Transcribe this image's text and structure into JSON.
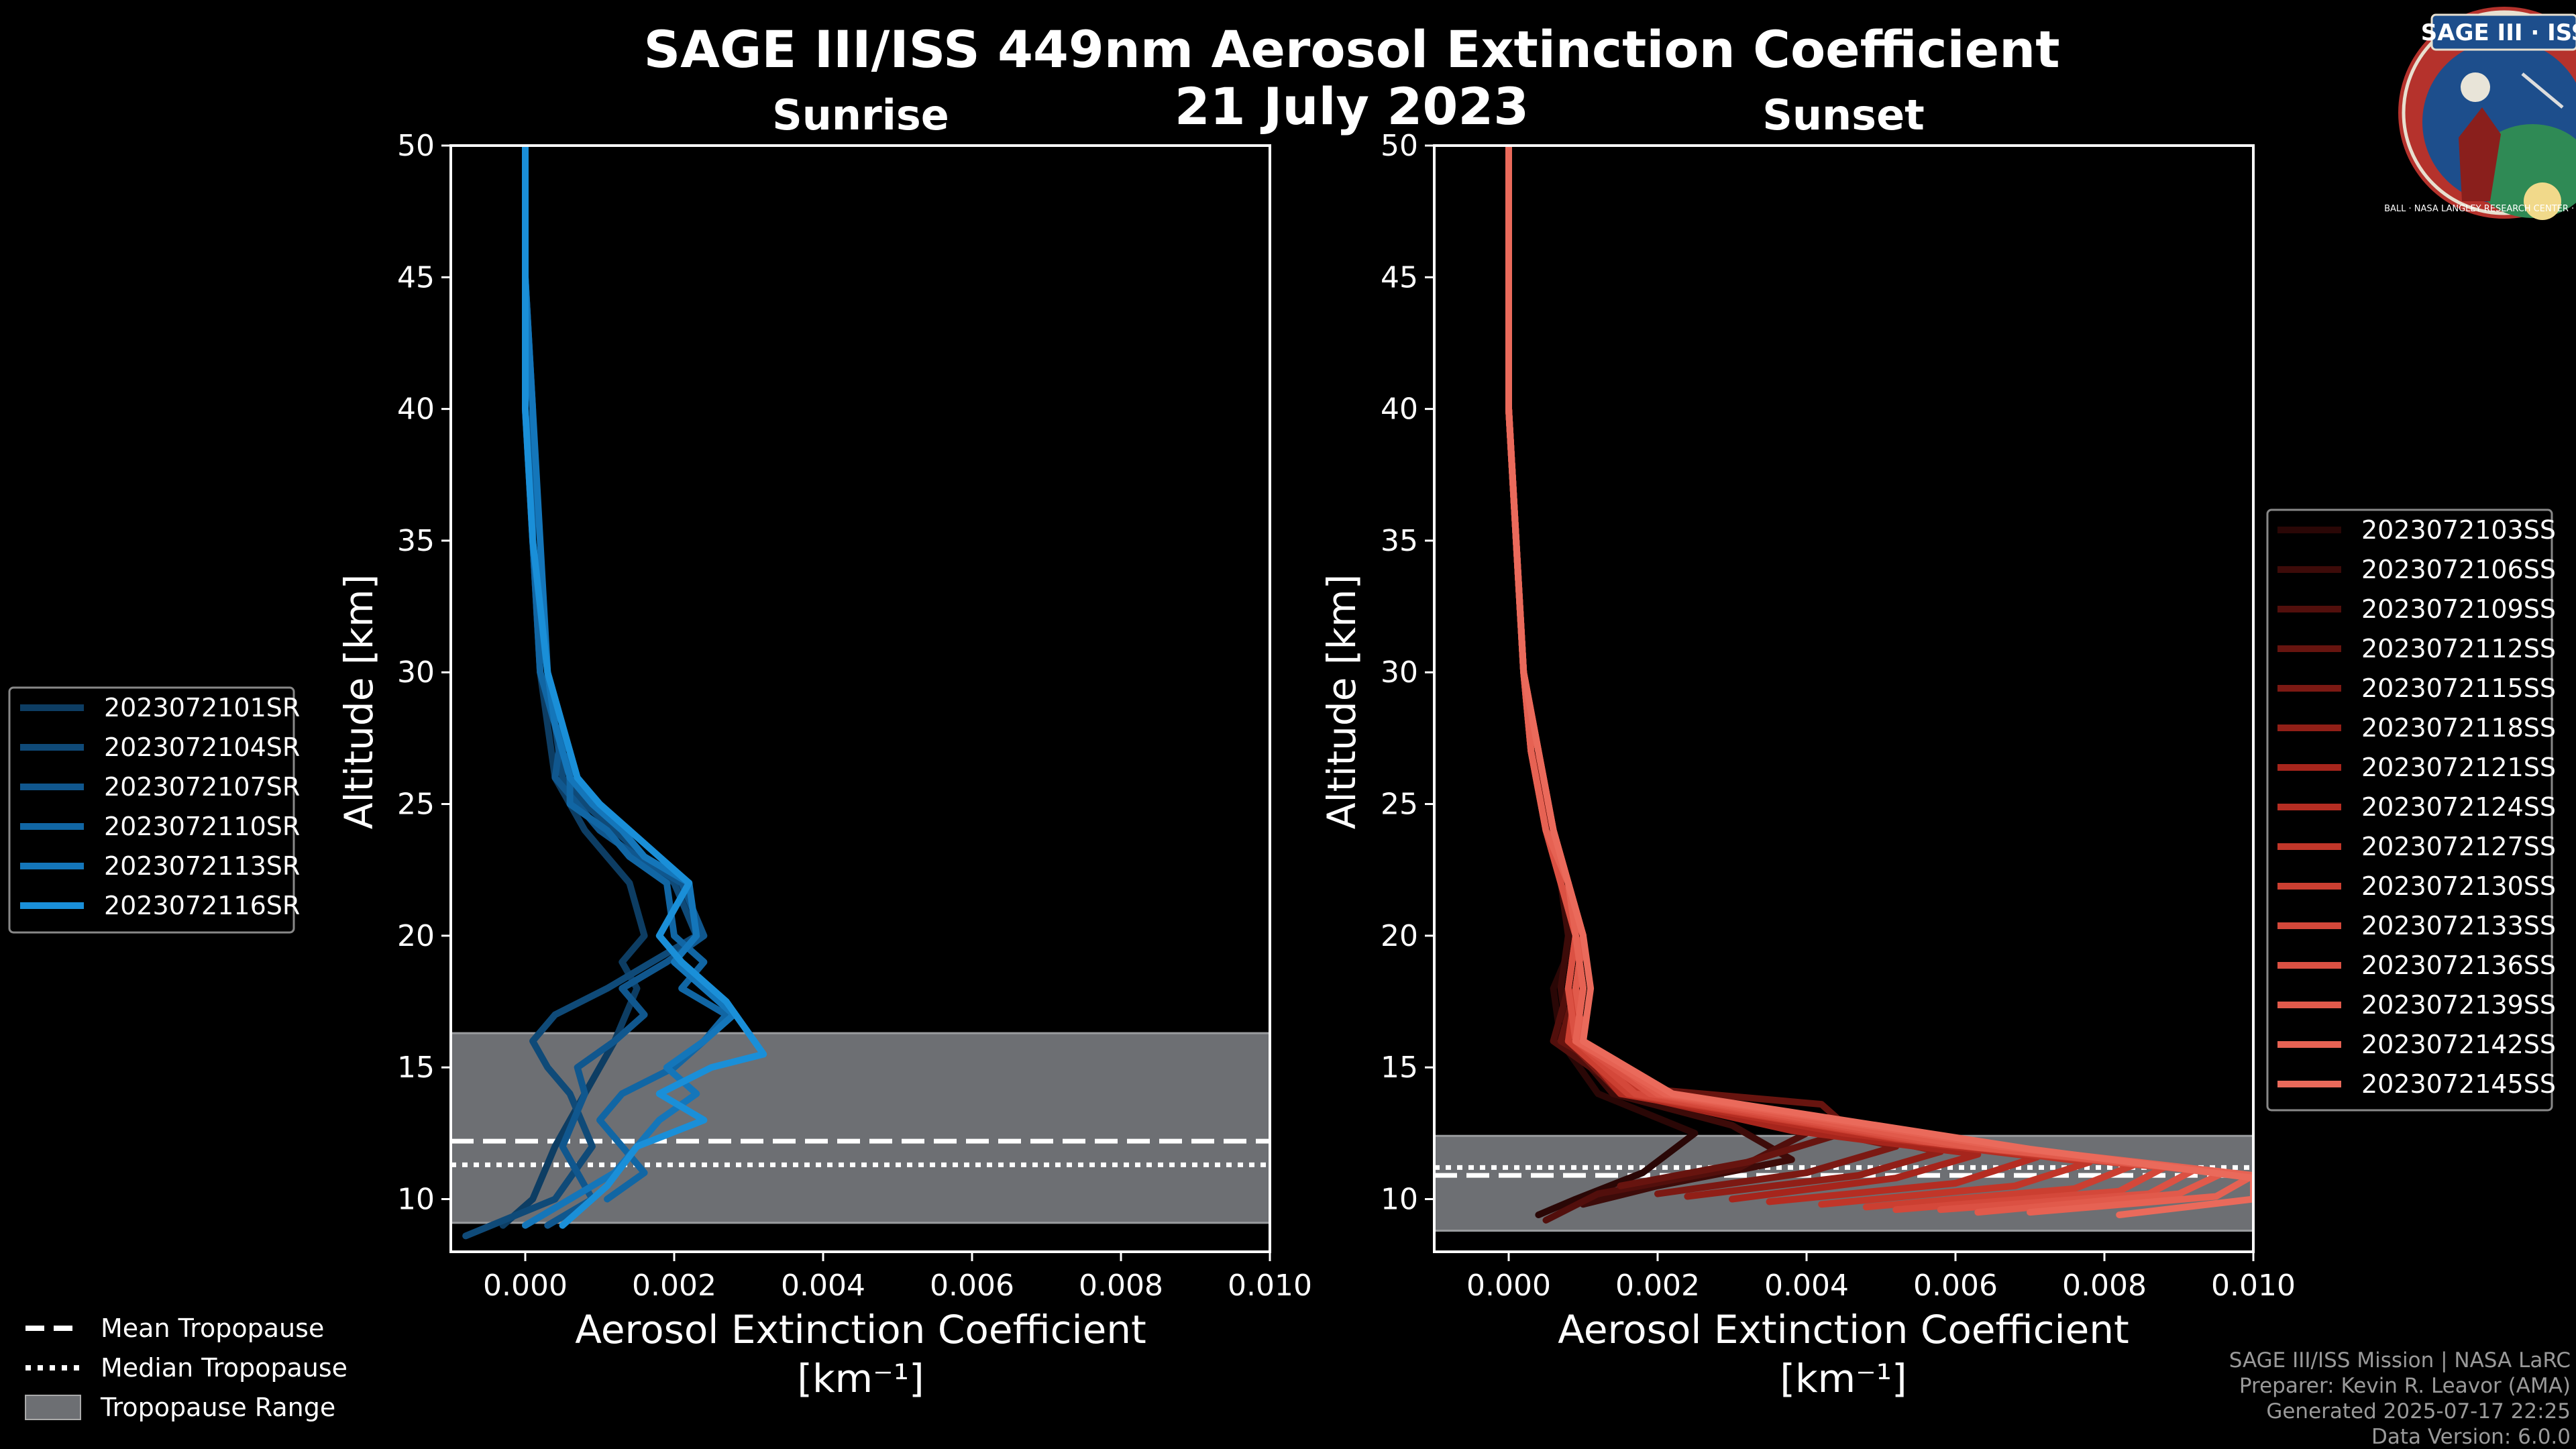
{
  "title_line1": "SAGE III/ISS 449nm Aerosol Extinction Coefficient",
  "title_line2": "21 July 2023",
  "logo": {
    "text": "SAGE III · ISS",
    "ring_text": "BALL · NASA LANGLEY RESEARCH CENTER · TAS-I · ESA",
    "colors": {
      "ring": "#b5322c",
      "field": "#1d4e8c",
      "earth": "#2f8a55"
    }
  },
  "credits": {
    "line1": "SAGE III/ISS Mission | NASA LaRC",
    "line2": "Preparer: Kevin R. Leavor (AMA)",
    "line3": "Generated 2025-07-17 22:25",
    "line4": "Data Version: 6.0.0"
  },
  "tropopause_legend": {
    "mean": "Mean Tropopause",
    "median": "Median Tropopause",
    "range": "Tropopause Range"
  },
  "chart_data": [
    {
      "type": "line",
      "title": "Sunrise",
      "xlabel": "Aerosol Extinction Coefficient",
      "xlabel_unit": "[km⁻¹]",
      "ylabel": "Altitude [km]",
      "xlim": [
        -0.001,
        0.01
      ],
      "ylim": [
        8,
        50
      ],
      "xticks": [
        0.0,
        0.002,
        0.004,
        0.006,
        0.008,
        0.01
      ],
      "xtick_labels": [
        "0.000",
        "0.002",
        "0.004",
        "0.006",
        "0.008",
        "0.010"
      ],
      "yticks": [
        10,
        15,
        20,
        25,
        30,
        35,
        40,
        45,
        50
      ],
      "ytick_labels": [
        "10",
        "15",
        "20",
        "25",
        "30",
        "35",
        "40",
        "45",
        "50"
      ],
      "tropopause": {
        "mean": 12.2,
        "median": 11.3,
        "range": [
          9.1,
          16.3
        ]
      },
      "legend_location": "left, outside",
      "series": [
        {
          "name": "2023072101SR",
          "color": "#0d3d63",
          "x": [
            0.0,
            0.0,
            0.0001,
            0.0001,
            0.0002,
            0.0003,
            0.0004,
            0.0006,
            0.0008,
            0.0011,
            0.0014,
            0.0016,
            0.0013,
            0.0015,
            0.0012,
            0.001,
            0.0008,
            0.0006,
            0.0004,
            0.0001,
            -0.0003
          ],
          "y": [
            50,
            45,
            40,
            35,
            30,
            28,
            26,
            25,
            24,
            23,
            22,
            20,
            19,
            18,
            16,
            15,
            14,
            13,
            12,
            10,
            9
          ]
        },
        {
          "name": "2023072104SR",
          "color": "#0f4a78",
          "x": [
            0.0,
            0.0,
            0.0,
            0.0001,
            0.0002,
            0.0004,
            0.0005,
            0.0008,
            0.0012,
            0.0016,
            0.002,
            0.0023,
            0.0017,
            0.0011,
            0.0004,
            0.0001,
            0.0003,
            0.0006,
            0.0009,
            0.0004,
            -0.0008
          ],
          "y": [
            50,
            45,
            40,
            35,
            30,
            28,
            26,
            25,
            24,
            23,
            22,
            20,
            19,
            18,
            17,
            16,
            15,
            14,
            12,
            10,
            8.6
          ]
        },
        {
          "name": "2023072107SR",
          "color": "#10578e",
          "x": [
            0.0,
            0.0,
            0.0001,
            0.0001,
            0.0003,
            0.0005,
            0.0004,
            0.0007,
            0.001,
            0.0015,
            0.0021,
            0.0024,
            0.0019,
            0.0013,
            0.0016,
            0.0012,
            0.0007,
            0.0008,
            0.0005,
            0.0009,
            0.0003
          ],
          "y": [
            50,
            45,
            40,
            35,
            30,
            28,
            26,
            25,
            24,
            23,
            22,
            20,
            19,
            18,
            17,
            16,
            15,
            14,
            12,
            10,
            9
          ]
        },
        {
          "name": "2023072110SR",
          "color": "#1166a4",
          "x": [
            0.0,
            0.0,
            0.0,
            0.0001,
            0.0002,
            0.0004,
            0.0006,
            0.0006,
            0.0011,
            0.0014,
            0.0019,
            0.002,
            0.0024,
            0.0021,
            0.0027,
            0.0024,
            0.002,
            0.0013,
            0.001,
            0.0016,
            0.0011
          ],
          "y": [
            50,
            45,
            40,
            35,
            30,
            28,
            27,
            25,
            24,
            23,
            22,
            20,
            19,
            18,
            17,
            16,
            15,
            14,
            13,
            11,
            10
          ]
        },
        {
          "name": "2023072113SR",
          "color": "#1476ba",
          "x": [
            0.0,
            0.0,
            0.0001,
            0.0002,
            0.0003,
            0.0004,
            0.0006,
            0.0009,
            0.0013,
            0.0016,
            0.0022,
            0.0023,
            0.002,
            0.0024,
            0.0028,
            0.0024,
            0.0019,
            0.0023,
            0.0018,
            0.0012,
            0.0
          ],
          "y": [
            50,
            45,
            40,
            35,
            30,
            28,
            26,
            25,
            24,
            23,
            22,
            20,
            19,
            18,
            17,
            16,
            15,
            14,
            13,
            11,
            9
          ]
        },
        {
          "name": "2023072116SR",
          "color": "#1a8fd8",
          "x": [
            0.0,
            0.0,
            0.0,
            0.0001,
            0.0003,
            0.0005,
            0.0007,
            0.001,
            0.0014,
            0.0018,
            0.0022,
            0.0018,
            0.0021,
            0.0027,
            0.0032,
            0.0025,
            0.0018,
            0.0024,
            0.0015,
            0.0011,
            0.0005
          ],
          "y": [
            50,
            45,
            40,
            35,
            30,
            28,
            26,
            25,
            24,
            23,
            22,
            20,
            19,
            17.5,
            15.5,
            15,
            14,
            13,
            12,
            10.5,
            9
          ]
        }
      ]
    },
    {
      "type": "line",
      "title": "Sunset",
      "xlabel": "Aerosol Extinction Coefficient",
      "xlabel_unit": "[km⁻¹]",
      "ylabel": "Altitude [km]",
      "xlim": [
        -0.001,
        0.01
      ],
      "ylim": [
        8,
        50
      ],
      "xticks": [
        0.0,
        0.002,
        0.004,
        0.006,
        0.008,
        0.01
      ],
      "xtick_labels": [
        "0.000",
        "0.002",
        "0.004",
        "0.006",
        "0.008",
        "0.010"
      ],
      "yticks": [
        10,
        15,
        20,
        25,
        30,
        35,
        40,
        45,
        50
      ],
      "ytick_labels": [
        "10",
        "15",
        "20",
        "25",
        "30",
        "35",
        "40",
        "45",
        "50"
      ],
      "tropopause": {
        "mean": 10.9,
        "median": 11.2,
        "range": [
          8.8,
          12.4
        ]
      },
      "legend_location": "right, outside",
      "series": [
        {
          "name": "2023072103SS",
          "color": "#2a0706",
          "x": [
            0,
            0,
            0.0001,
            0.0002,
            0.0004,
            0.0006,
            0.0008,
            0.0009,
            0.0006,
            0.0007,
            0.0012,
            0.0025,
            0.0018,
            0.0009,
            0.0004
          ],
          "y": [
            50,
            40,
            35,
            30,
            27,
            24,
            22,
            20,
            18,
            16,
            14,
            12.5,
            11,
            10,
            9.4
          ]
        },
        {
          "name": "2023072106SS",
          "color": "#3d0b09",
          "x": [
            0,
            0,
            0.0001,
            0.0002,
            0.0003,
            0.0005,
            0.0007,
            0.0008,
            0.0007,
            0.0008,
            0.0014,
            0.003,
            0.0038,
            0.002,
            0.001
          ],
          "y": [
            50,
            40,
            35,
            30,
            27,
            24,
            22,
            20,
            18,
            16,
            14,
            12.8,
            11.5,
            10.5,
            9.8
          ]
        },
        {
          "name": "2023072109SS",
          "color": "#520f0c",
          "x": [
            0,
            0,
            0.0001,
            0.0002,
            0.0004,
            0.0005,
            0.0007,
            0.0009,
            0.0008,
            0.0006,
            0.0016,
            0.004,
            0.0031,
            0.0012,
            0.0005
          ],
          "y": [
            50,
            40,
            35,
            30,
            27,
            24,
            22,
            20,
            18,
            16,
            14,
            12.5,
            11.2,
            10.2,
            9.2
          ]
        },
        {
          "name": "2023072112SS",
          "color": "#67140f",
          "x": [
            0,
            0,
            0.0001,
            0.0002,
            0.0003,
            0.0005,
            0.0008,
            0.001,
            0.0009,
            0.0007,
            0.0018,
            0.0042,
            0.0046,
            0.0032,
            0.0015
          ],
          "y": [
            50,
            40,
            35,
            30,
            27,
            24,
            22,
            20,
            18,
            16,
            14.2,
            13.6,
            12.6,
            11.4,
            10.5
          ]
        },
        {
          "name": "2023072115SS",
          "color": "#7c1913",
          "x": [
            0,
            0,
            0.0001,
            0.0002,
            0.0004,
            0.0006,
            0.0008,
            0.0009,
            0.001,
            0.0008,
            0.0015,
            0.0035,
            0.0052,
            0.004,
            0.002
          ],
          "y": [
            50,
            40,
            35,
            30,
            27,
            24,
            22,
            20,
            18,
            16,
            14,
            13,
            12,
            11,
            10.2
          ]
        },
        {
          "name": "2023072118SS",
          "color": "#911f17",
          "x": [
            0,
            0,
            0.0001,
            0.0002,
            0.0003,
            0.0005,
            0.0007,
            0.0009,
            0.0008,
            0.0009,
            0.0017,
            0.0041,
            0.0058,
            0.0047,
            0.0024
          ],
          "y": [
            50,
            40,
            35,
            30,
            27,
            24,
            22,
            20,
            18,
            16,
            14,
            12.8,
            11.8,
            10.9,
            10.1
          ]
        },
        {
          "name": "2023072121SS",
          "color": "#a6251c",
          "x": [
            0,
            0,
            0.0001,
            0.0002,
            0.0004,
            0.0006,
            0.0008,
            0.001,
            0.0009,
            0.0008,
            0.0016,
            0.0038,
            0.0063,
            0.0052,
            0.003
          ],
          "y": [
            50,
            40,
            35,
            30,
            27,
            24,
            22,
            20,
            18,
            16,
            14,
            12.6,
            11.7,
            10.8,
            10.0
          ]
        },
        {
          "name": "2023072124SS",
          "color": "#b52d22",
          "x": [
            0,
            0,
            0.0001,
            0.0002,
            0.0003,
            0.0005,
            0.0007,
            0.0009,
            0.001,
            0.0009,
            0.0015,
            0.0045,
            0.0071,
            0.006,
            0.0035
          ],
          "y": [
            50,
            40,
            35,
            30,
            27,
            24,
            22,
            20,
            18,
            16,
            14,
            12.5,
            11.6,
            10.6,
            9.9
          ]
        },
        {
          "name": "2023072127SS",
          "color": "#c13629",
          "x": [
            0,
            0,
            0.0001,
            0.0002,
            0.0004,
            0.0006,
            0.0008,
            0.0009,
            0.0008,
            0.001,
            0.0018,
            0.005,
            0.0078,
            0.0068,
            0.0042
          ],
          "y": [
            50,
            40,
            35,
            30,
            27,
            24,
            22,
            20,
            18,
            16,
            14,
            12.4,
            11.4,
            10.5,
            9.8
          ]
        },
        {
          "name": "2023072130SS",
          "color": "#cb3f31",
          "x": [
            0,
            0,
            0.0001,
            0.0002,
            0.0003,
            0.0005,
            0.0008,
            0.001,
            0.0009,
            0.0008,
            0.0016,
            0.0052,
            0.0084,
            0.0076,
            0.0048
          ],
          "y": [
            50,
            40,
            35,
            30,
            27,
            24,
            22,
            20,
            18,
            16,
            14,
            12.3,
            11.3,
            10.4,
            9.7
          ]
        },
        {
          "name": "2023072133SS",
          "color": "#d4483a",
          "x": [
            0,
            0,
            0.0001,
            0.0002,
            0.0004,
            0.0006,
            0.0008,
            0.0009,
            0.001,
            0.0009,
            0.0017,
            0.0055,
            0.0088,
            0.0082,
            0.0052
          ],
          "y": [
            50,
            40,
            35,
            30,
            27,
            24,
            22,
            20,
            18,
            16,
            14,
            12.2,
            11.2,
            10.3,
            9.6
          ]
        },
        {
          "name": "2023072136SS",
          "color": "#db5143",
          "x": [
            0,
            0,
            0.0001,
            0.0002,
            0.0003,
            0.0005,
            0.0007,
            0.0009,
            0.0008,
            0.0009,
            0.0019,
            0.0058,
            0.0092,
            0.0086,
            0.0058
          ],
          "y": [
            50,
            40,
            35,
            30,
            27,
            24,
            22,
            20,
            18,
            16,
            14,
            12.1,
            11.1,
            10.2,
            9.6
          ]
        },
        {
          "name": "2023072139SS",
          "color": "#e15a4b",
          "x": [
            0,
            0,
            0.0001,
            0.0002,
            0.0004,
            0.0006,
            0.0008,
            0.001,
            0.0009,
            0.001,
            0.002,
            0.0062,
            0.0096,
            0.009,
            0.0063
          ],
          "y": [
            50,
            40,
            35,
            30,
            27,
            24,
            22,
            20,
            18,
            16,
            14,
            12,
            11,
            10.2,
            9.5
          ]
        },
        {
          "name": "2023072142SS",
          "color": "#e66253",
          "x": [
            0,
            0,
            0.0001,
            0.0002,
            0.0003,
            0.0005,
            0.0008,
            0.0009,
            0.001,
            0.0009,
            0.0021,
            0.0066,
            0.01,
            0.0095,
            0.007
          ],
          "y": [
            50,
            40,
            35,
            30,
            27,
            24,
            22,
            20,
            18,
            16,
            14,
            12,
            10.9,
            10.1,
            9.5
          ]
        },
        {
          "name": "2023072145SS",
          "color": "#ea6a5b",
          "x": [
            0,
            0,
            0.0001,
            0.0002,
            0.0004,
            0.0006,
            0.0008,
            0.001,
            0.0011,
            0.001,
            0.0022,
            0.007,
            0.01,
            0.01,
            0.0082
          ],
          "y": [
            50,
            40,
            35,
            30,
            27,
            24,
            22,
            20,
            18,
            16,
            14,
            11.9,
            10.8,
            10.0,
            9.4
          ]
        }
      ]
    }
  ]
}
